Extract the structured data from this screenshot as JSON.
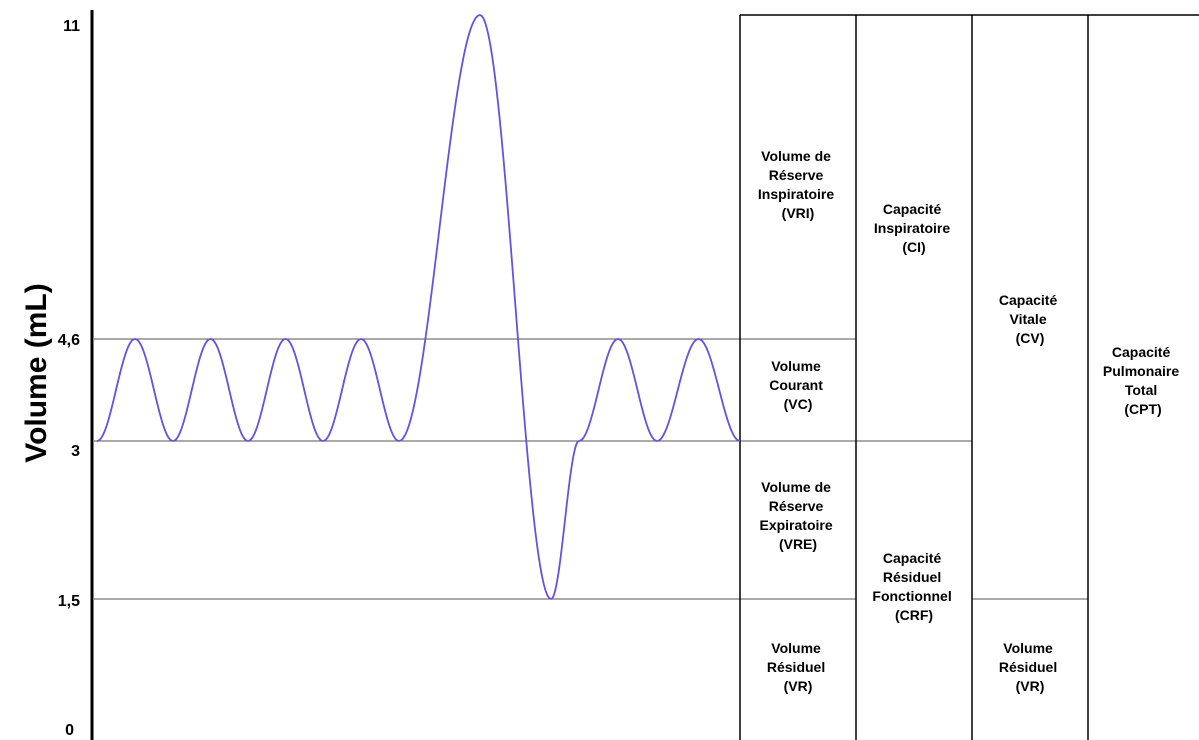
{
  "y_axis_label": "Volume (mL)",
  "y_ticks": [
    "11",
    "4,6",
    "3",
    "1,5",
    "0"
  ],
  "curve_color": "#6a4fe0",
  "boxes": {
    "vri": [
      "Volume de",
      "Réserve",
      "Inspiratoire",
      "(VRI)"
    ],
    "vc": [
      "Volume",
      "Courant",
      "(VC)"
    ],
    "vre": [
      "Volume de",
      "Réserve",
      "Expiratoire",
      "(VRE)"
    ],
    "vr1": [
      "Volume",
      "Résiduel",
      "(VR)"
    ],
    "ci": [
      "Capacité",
      "Inspiratoire",
      "(CI)"
    ],
    "crf": [
      "Capacité",
      "Résiduel",
      "Fonctionnel",
      "(CRF)"
    ],
    "cv": [
      "Capacité",
      "Vitale",
      "(CV)"
    ],
    "vr2": [
      "Volume",
      "Résiduel",
      "(VR)"
    ],
    "cpt": [
      "Capacité",
      "Pulmonaire",
      "Total",
      "(CPT)"
    ]
  }
}
